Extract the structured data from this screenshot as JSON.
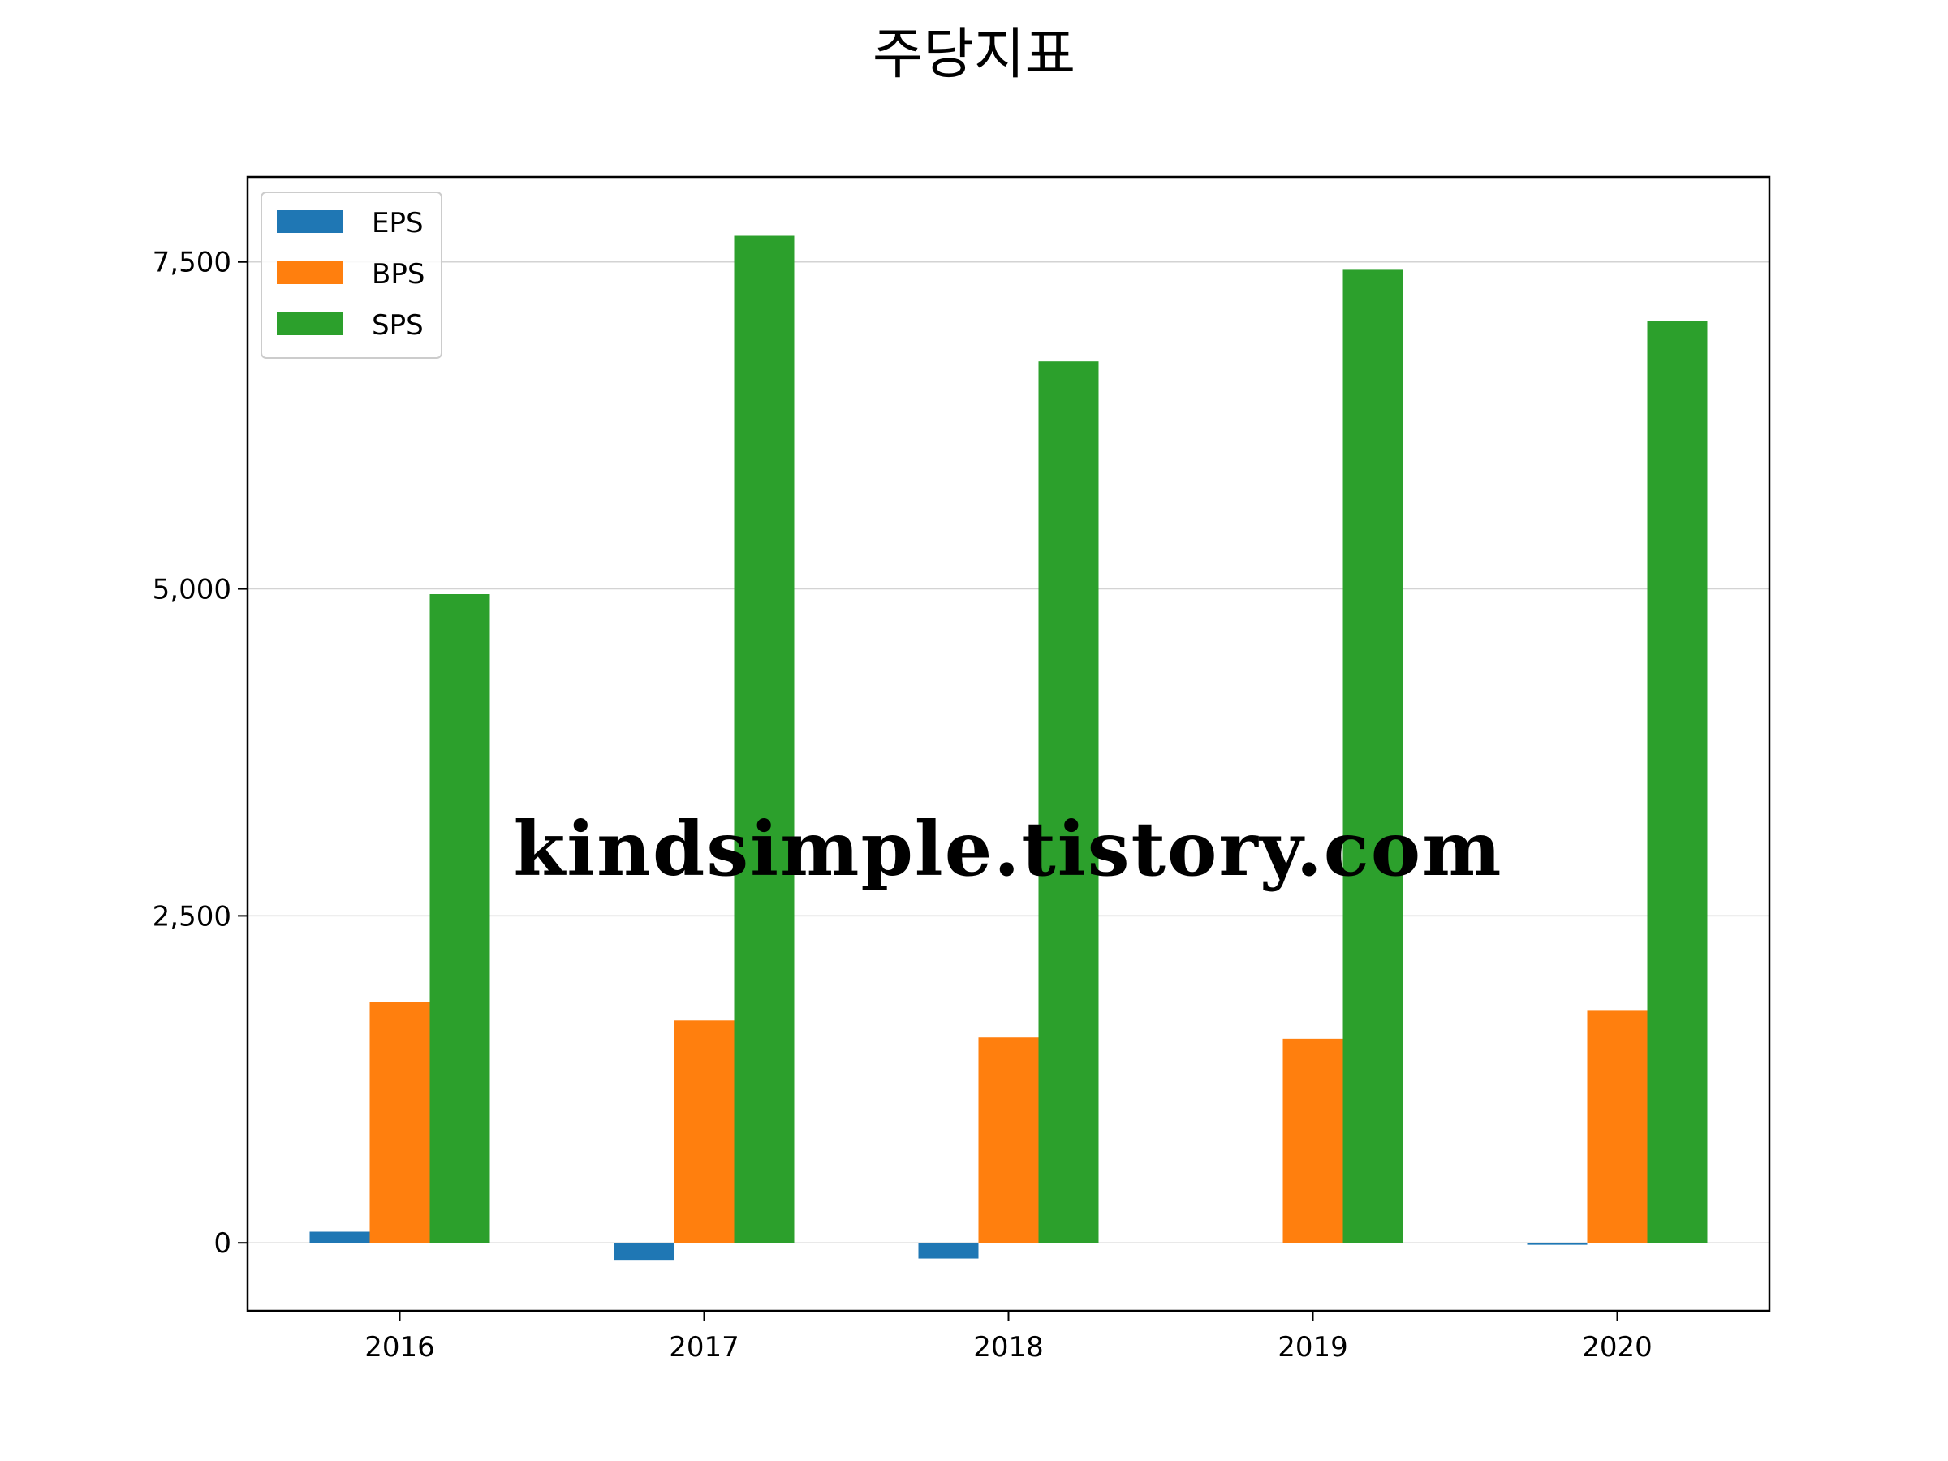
{
  "chart_data": {
    "type": "bar",
    "title": "주당지표",
    "xlabel": "",
    "ylabel": "",
    "categories": [
      "2016",
      "2017",
      "2018",
      "2019",
      "2020"
    ],
    "series": [
      {
        "name": "EPS",
        "color": "#1f77b4",
        "values": [
          85,
          -130,
          -120,
          0,
          -15
        ]
      },
      {
        "name": "BPS",
        "color": "#ff7f0e",
        "values": [
          1840,
          1700,
          1570,
          1560,
          1780
        ]
      },
      {
        "name": "SPS",
        "color": "#2ca02c",
        "values": [
          4960,
          7700,
          6740,
          7440,
          7050
        ]
      }
    ],
    "ylim": [
      -520,
      8150
    ],
    "yticks": [
      0,
      2500,
      5000,
      7500
    ],
    "ytick_labels": [
      "0",
      "2,500",
      "5,000",
      "7,500"
    ],
    "grid": "y",
    "legend_position": "upper-left",
    "watermark": "kindsimple.tistory.com",
    "watermark_color": "#e4a3e8"
  }
}
